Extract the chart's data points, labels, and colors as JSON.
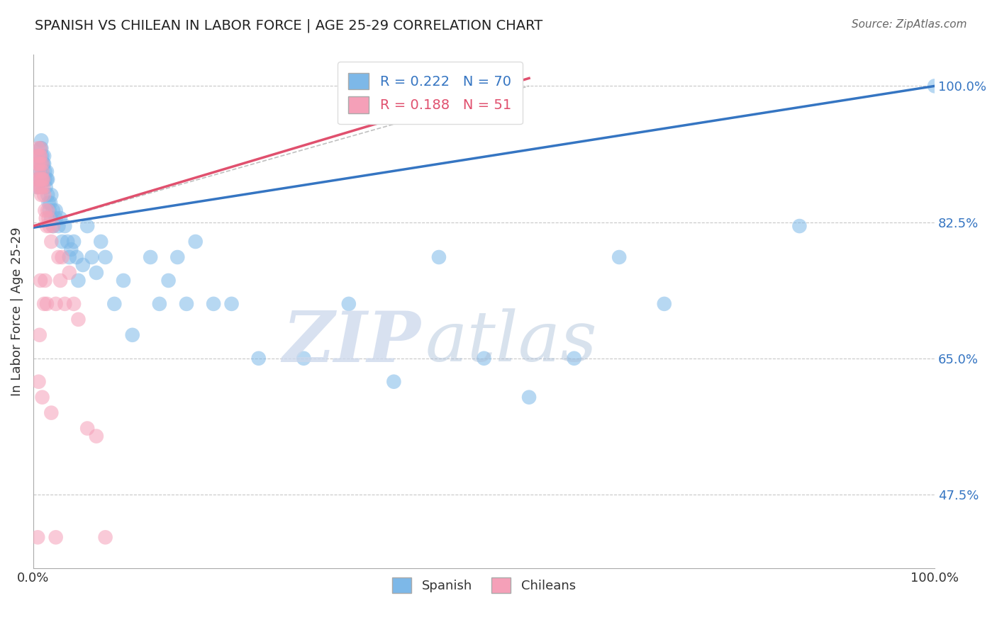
{
  "title": "SPANISH VS CHILEAN IN LABOR FORCE | AGE 25-29 CORRELATION CHART",
  "source": "Source: ZipAtlas.com",
  "ylabel": "In Labor Force | Age 25-29",
  "xlim": [
    0.0,
    1.0
  ],
  "ylim": [
    0.38,
    1.04
  ],
  "ytick_positions": [
    0.475,
    0.65,
    0.825,
    1.0
  ],
  "ytick_labels": [
    "47.5%",
    "65.0%",
    "82.5%",
    "100.0%"
  ],
  "blue_color": "#7db8e8",
  "pink_color": "#f5a0b8",
  "blue_line_color": "#3575c2",
  "pink_line_color": "#e0506e",
  "blue_R": "0.222",
  "blue_N": "70",
  "pink_R": "0.188",
  "pink_N": "51",
  "spanish_x": [
    0.005,
    0.005,
    0.007,
    0.007,
    0.008,
    0.008,
    0.009,
    0.009,
    0.01,
    0.01,
    0.01,
    0.011,
    0.011,
    0.012,
    0.012,
    0.013,
    0.013,
    0.014,
    0.015,
    0.015,
    0.016,
    0.016,
    0.017,
    0.018,
    0.019,
    0.02,
    0.02,
    0.022,
    0.022,
    0.025,
    0.025,
    0.028,
    0.03,
    0.032,
    0.035,
    0.038,
    0.04,
    0.042,
    0.045,
    0.048,
    0.05,
    0.055,
    0.06,
    0.065,
    0.07,
    0.075,
    0.08,
    0.09,
    0.1,
    0.11,
    0.13,
    0.14,
    0.15,
    0.16,
    0.17,
    0.18,
    0.2,
    0.22,
    0.25,
    0.3,
    0.35,
    0.4,
    0.45,
    0.5,
    0.55,
    0.6,
    0.65,
    0.7,
    0.85,
    1.0
  ],
  "spanish_y": [
    0.87,
    0.88,
    0.89,
    0.9,
    0.91,
    0.92,
    0.93,
    0.92,
    0.91,
    0.9,
    0.89,
    0.88,
    0.9,
    0.91,
    0.9,
    0.89,
    0.88,
    0.87,
    0.88,
    0.89,
    0.88,
    0.86,
    0.85,
    0.84,
    0.85,
    0.86,
    0.83,
    0.84,
    0.82,
    0.83,
    0.84,
    0.82,
    0.83,
    0.8,
    0.82,
    0.8,
    0.78,
    0.79,
    0.8,
    0.78,
    0.75,
    0.77,
    0.82,
    0.78,
    0.76,
    0.8,
    0.78,
    0.72,
    0.75,
    0.68,
    0.78,
    0.72,
    0.75,
    0.78,
    0.72,
    0.8,
    0.72,
    0.72,
    0.65,
    0.65,
    0.72,
    0.62,
    0.78,
    0.65,
    0.6,
    0.65,
    0.78,
    0.72,
    0.82,
    1.0
  ],
  "chilean_x": [
    0.004,
    0.004,
    0.005,
    0.005,
    0.005,
    0.006,
    0.006,
    0.007,
    0.007,
    0.007,
    0.008,
    0.008,
    0.008,
    0.009,
    0.009,
    0.009,
    0.01,
    0.01,
    0.01,
    0.011,
    0.011,
    0.012,
    0.013,
    0.014,
    0.015,
    0.016,
    0.017,
    0.018,
    0.02,
    0.022,
    0.025,
    0.028,
    0.03,
    0.032,
    0.035,
    0.04,
    0.045,
    0.05,
    0.06,
    0.07,
    0.08,
    0.02,
    0.015,
    0.012,
    0.01,
    0.008,
    0.006,
    0.005,
    0.007,
    0.013,
    0.025
  ],
  "chilean_y": [
    0.88,
    0.87,
    0.92,
    0.91,
    0.9,
    0.89,
    0.9,
    0.91,
    0.88,
    0.87,
    0.92,
    0.91,
    0.9,
    0.88,
    0.87,
    0.86,
    0.89,
    0.9,
    0.88,
    0.87,
    0.88,
    0.86,
    0.84,
    0.83,
    0.82,
    0.84,
    0.83,
    0.82,
    0.8,
    0.82,
    0.72,
    0.78,
    0.75,
    0.78,
    0.72,
    0.76,
    0.72,
    0.7,
    0.56,
    0.55,
    0.42,
    0.58,
    0.72,
    0.72,
    0.6,
    0.75,
    0.62,
    0.42,
    0.68,
    0.75,
    0.42
  ],
  "dash_line_x": [
    0.0,
    0.55
  ],
  "dash_line_y": [
    0.82,
    1.0
  ],
  "blue_line_x0": 0.0,
  "blue_line_x1": 1.0,
  "blue_line_y0": 0.818,
  "blue_line_y1": 1.0,
  "pink_line_x0": 0.0,
  "pink_line_x1": 0.55,
  "pink_line_y0": 0.82,
  "pink_line_y1": 1.01
}
